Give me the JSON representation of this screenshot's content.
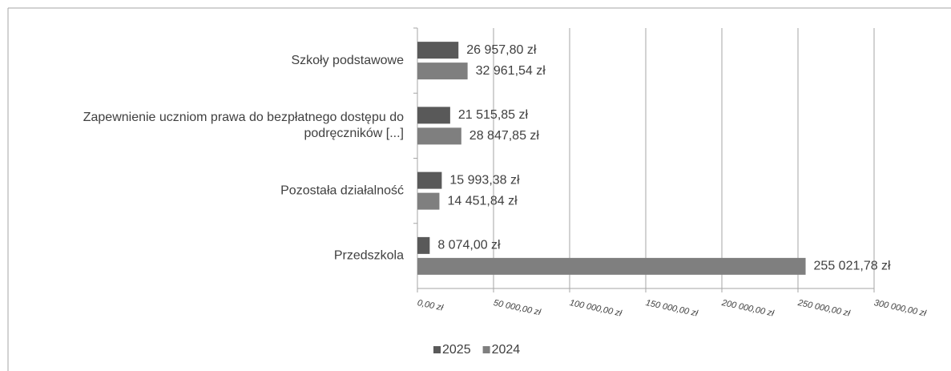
{
  "chart_data": {
    "type": "barh",
    "categories": [
      "Szkoły podstawowe",
      "Zapewnienie uczniom prawa do bezpłatnego dostępu do\npodręczników [...]",
      "Pozostała działalność",
      "Przedszkola"
    ],
    "series": [
      {
        "name": "2025",
        "color": "#595959",
        "values": [
          26957.8,
          21515.85,
          15993.38,
          8074.0
        ],
        "value_labels": [
          "26 957,80 zł",
          "21 515,85 zł",
          "15 993,38 zł",
          "8 074,00 zł"
        ]
      },
      {
        "name": "2024",
        "color": "#7f7f7f",
        "values": [
          32961.54,
          28847.85,
          14451.84,
          255021.78
        ],
        "value_labels": [
          "32 961,54 zł",
          "28 847,85 zł",
          "14 451,84 zł",
          "255 021,78 zł"
        ]
      }
    ],
    "xlim": [
      0,
      300000
    ],
    "xticks": [
      {
        "value": 0,
        "label": "0,00 zł"
      },
      {
        "value": 50000,
        "label": "50 000,00 zł"
      },
      {
        "value": 100000,
        "label": "100 000,00 zł"
      },
      {
        "value": 150000,
        "label": "150 000,00 zł"
      },
      {
        "value": 200000,
        "label": "200 000,00 zł"
      },
      {
        "value": 250000,
        "label": "250 000,00 zł"
      },
      {
        "value": 300000,
        "label": "300 000,00 zł"
      }
    ],
    "grid": true,
    "legend": "bottom"
  }
}
